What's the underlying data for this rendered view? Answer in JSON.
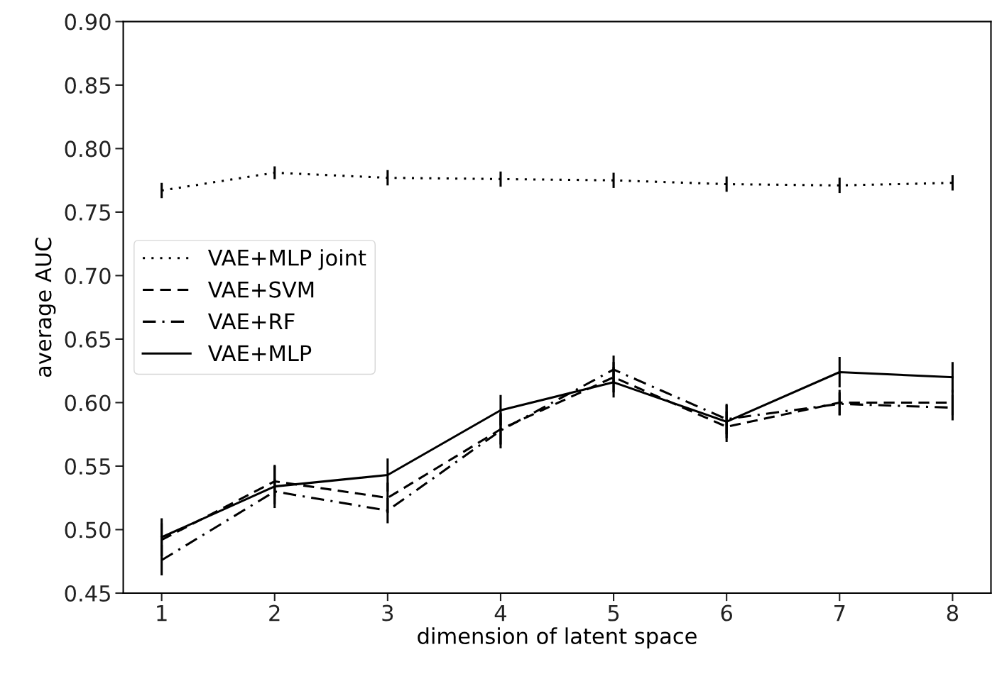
{
  "chart_data": {
    "type": "line",
    "xlabel": "dimension of latent space",
    "ylabel": "average AUC",
    "x": [
      1,
      2,
      3,
      4,
      5,
      6,
      7,
      8
    ],
    "xlim": [
      0.66,
      8.34
    ],
    "xticks": [
      1,
      2,
      3,
      4,
      5,
      6,
      7,
      8
    ],
    "ylim": [
      0.45,
      0.9
    ],
    "yticks": [
      {
        "value": 0.45,
        "label": "0.45"
      },
      {
        "value": 0.5,
        "label": "0.50"
      },
      {
        "value": 0.55,
        "label": "0.55"
      },
      {
        "value": 0.6,
        "label": "0.60"
      },
      {
        "value": 0.65,
        "label": "0.65"
      },
      {
        "value": 0.7,
        "label": "0.70"
      },
      {
        "value": 0.75,
        "label": "0.75"
      },
      {
        "value": 0.8,
        "label": "0.80"
      },
      {
        "value": 0.85,
        "label": "0.85"
      },
      {
        "value": 0.9,
        "label": "0.90"
      }
    ],
    "grid": false,
    "legend": "center left",
    "marker": "none",
    "series": [
      {
        "name": "VAE+MLP joint",
        "color": "#000000",
        "line_style": "dotted",
        "values": [
          0.767,
          0.781,
          0.777,
          0.776,
          0.775,
          0.772,
          0.771,
          0.773
        ],
        "errors": [
          0.006,
          0.005,
          0.006,
          0.006,
          0.006,
          0.006,
          0.006,
          0.006
        ]
      },
      {
        "name": "VAE+SVM",
        "color": "#000000",
        "line_style": "dashed",
        "values": [
          0.492,
          0.538,
          0.525,
          0.579,
          0.62,
          0.581,
          0.6,
          0.6
        ],
        "errors": [
          0.013,
          0.012,
          0.012,
          0.012,
          0.012,
          0.012,
          0.01,
          0.01
        ]
      },
      {
        "name": "VAE+RF",
        "color": "#000000",
        "line_style": "dashdot",
        "values": [
          0.476,
          0.53,
          0.515,
          0.578,
          0.626,
          0.587,
          0.599,
          0.596
        ],
        "errors": [
          0.012,
          0.01,
          0.01,
          0.014,
          0.011,
          0.012,
          0.009,
          0.01
        ]
      },
      {
        "name": "VAE+MLP",
        "color": "#000000",
        "line_style": "solid",
        "values": [
          0.494,
          0.534,
          0.543,
          0.594,
          0.616,
          0.585,
          0.624,
          0.62
        ],
        "errors": [
          0.015,
          0.017,
          0.013,
          0.012,
          0.012,
          0.013,
          0.012,
          0.012
        ]
      }
    ]
  }
}
